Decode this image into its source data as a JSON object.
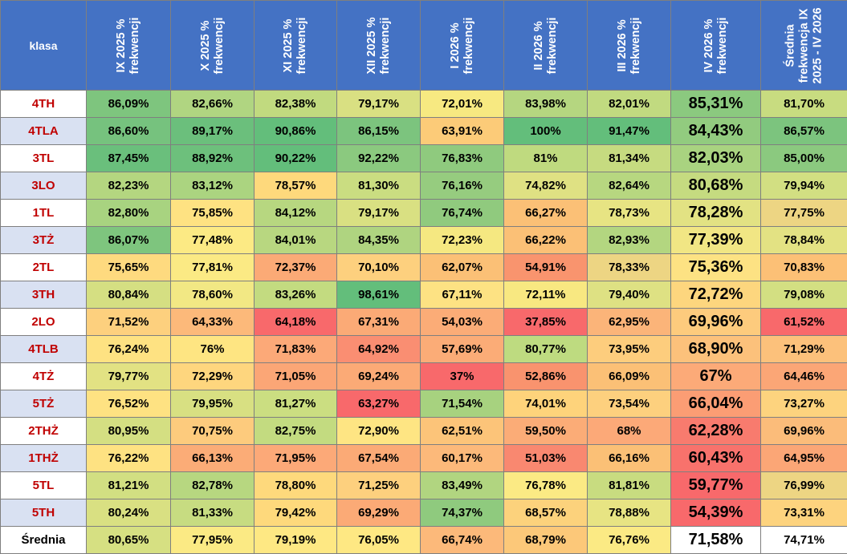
{
  "chart_data": {
    "type": "table",
    "columns": [
      "klasa",
      "IX 2025 % frekwencji",
      "X 2025 % frekwencji",
      "XI 2025 % frekwencji",
      "XII 2025 % frekwencji",
      "I 2026 % frekwencji",
      "II 2026 % frekwencji",
      "III 2026 % frekwencji",
      "IV 2026 % frekwencji",
      "Średnia frekwencja IX 2025 - IV 2026"
    ],
    "rows": [
      {
        "label": "4TH",
        "values": [
          "86,09%",
          "82,66%",
          "82,38%",
          "79,17%",
          "72,01%",
          "83,98%",
          "82,01%",
          "85,31%",
          "81,70%"
        ],
        "colors": [
          "#7ec57e",
          "#b0d581",
          "#c1da7f",
          "#d9e082",
          "#f7e981",
          "#b5d680",
          "#c1da80",
          "#8bc97f",
          "#c8dc80"
        ]
      },
      {
        "label": "4TLA",
        "values": [
          "86,60%",
          "89,17%",
          "90,86%",
          "86,15%",
          "63,91%",
          "100%",
          "91,47%",
          "84,43%",
          "86,57%"
        ],
        "colors": [
          "#76c27e",
          "#6bbf7c",
          "#63be7b",
          "#7cc47e",
          "#fccb78",
          "#63be7b",
          "#63be7b",
          "#92cb7f",
          "#7cc47e"
        ]
      },
      {
        "label": "3TL",
        "values": [
          "87,45%",
          "88,92%",
          "90,22%",
          "92,22%",
          "76,83%",
          "81%",
          "81,34%",
          "82,03%",
          "85,00%"
        ],
        "colors": [
          "#6abf7c",
          "#6dc07c",
          "#63be7b",
          "#8bc97f",
          "#8fca7e",
          "#bfda7f",
          "#c6db80",
          "#a9d380",
          "#8bc97f"
        ]
      },
      {
        "label": "3LO",
        "values": [
          "82,23%",
          "83,12%",
          "78,57%",
          "81,30%",
          "76,16%",
          "74,82%",
          "82,64%",
          "80,68%",
          "79,94%"
        ],
        "colors": [
          "#b4d680",
          "#abd480",
          "#fed97c",
          "#cadd81",
          "#96cc7f",
          "#dfe183",
          "#b7d780",
          "#c5db80",
          "#d2df82"
        ]
      },
      {
        "label": "1TL",
        "values": [
          "82,80%",
          "75,85%",
          "84,12%",
          "79,17%",
          "76,74%",
          "66,27%",
          "78,73%",
          "78,28%",
          "77,75%"
        ],
        "colors": [
          "#a8d380",
          "#fee282",
          "#b7d780",
          "#d9e082",
          "#90ca7e",
          "#fbc076",
          "#e7e483",
          "#e2e283",
          "#edd583"
        ]
      },
      {
        "label": "3TŻ",
        "values": [
          "86,07%",
          "77,48%",
          "84,01%",
          "84,35%",
          "72,23%",
          "66,22%",
          "82,93%",
          "77,39%",
          "78,84%"
        ],
        "colors": [
          "#7ec57e",
          "#fcea84",
          "#b8d780",
          "#afd480",
          "#f5e881",
          "#fbc076",
          "#b3d680",
          "#f1e684",
          "#e3e283"
        ]
      },
      {
        "label": "2TL",
        "values": [
          "75,65%",
          "77,81%",
          "72,37%",
          "70,10%",
          "62,07%",
          "54,91%",
          "78,33%",
          "75,36%",
          "70,83%"
        ],
        "colors": [
          "#feda7f",
          "#fbea84",
          "#fbaa76",
          "#fdd07e",
          "#fbc076",
          "#f9946e",
          "#edd583",
          "#fde283",
          "#fcc076"
        ]
      },
      {
        "label": "3TH",
        "values": [
          "80,84%",
          "78,60%",
          "83,26%",
          "98,61%",
          "67,11%",
          "72,11%",
          "79,40%",
          "72,72%",
          "79,08%"
        ],
        "colors": [
          "#d5df82",
          "#f2e884",
          "#c3db80",
          "#63be7b",
          "#fde283",
          "#f8e881",
          "#dee183",
          "#fdd67e",
          "#d3df82"
        ]
      },
      {
        "label": "2LO",
        "values": [
          "71,52%",
          "64,33%",
          "64,18%",
          "67,31%",
          "54,03%",
          "37,85%",
          "62,95%",
          "69,96%",
          "61,52%"
        ],
        "colors": [
          "#fdd07e",
          "#fcb97a",
          "#f8696b",
          "#fbaa76",
          "#fbac77",
          "#f8696b",
          "#fbb479",
          "#fdcb7d",
          "#f8696b"
        ]
      },
      {
        "label": "4TLB",
        "values": [
          "76,24%",
          "76%",
          "71,83%",
          "64,92%",
          "57,69%",
          "80,77%",
          "73,95%",
          "68,90%",
          "71,29%"
        ],
        "colors": [
          "#fee282",
          "#fee582",
          "#fca978",
          "#fa8e72",
          "#fbac77",
          "#bedb80",
          "#fdcd7d",
          "#fcc17b",
          "#fcc17b"
        ]
      },
      {
        "label": "4TŻ",
        "values": [
          "79,77%",
          "72,29%",
          "71,05%",
          "69,24%",
          "37%",
          "52,86%",
          "66,09%",
          "67%",
          "64,46%"
        ],
        "colors": [
          "#e2e283",
          "#fed67e",
          "#fba676",
          "#fbaa76",
          "#f8696b",
          "#f9936e",
          "#fbc076",
          "#fcaa78",
          "#fba676"
        ]
      },
      {
        "label": "5TŻ",
        "values": [
          "76,52%",
          "79,95%",
          "81,27%",
          "63,27%",
          "71,54%",
          "74,01%",
          "73,54%",
          "66,04%",
          "73,27%"
        ],
        "colors": [
          "#fee282",
          "#d8e082",
          "#cbde81",
          "#f8696b",
          "#a7d27f",
          "#fed37b",
          "#fdd07e",
          "#fb9d74",
          "#fdd37e"
        ]
      },
      {
        "label": "2THŻ",
        "values": [
          "80,95%",
          "70,75%",
          "82,75%",
          "72,90%",
          "62,51%",
          "59,50%",
          "68%",
          "62,28%",
          "69,96%"
        ],
        "colors": [
          "#d4df82",
          "#fdcb7d",
          "#c3db80",
          "#fee583",
          "#fcc479",
          "#fbac77",
          "#fca978",
          "#f87b6e",
          "#fbbc7a"
        ]
      },
      {
        "label": "1THŻ",
        "values": [
          "76,22%",
          "66,13%",
          "71,95%",
          "67,54%",
          "60,17%",
          "51,03%",
          "66,16%",
          "60,43%",
          "64,95%"
        ],
        "colors": [
          "#fee282",
          "#fbac77",
          "#fca978",
          "#fbaa76",
          "#fcb97a",
          "#f98870",
          "#fbc076",
          "#f8726c",
          "#fba676"
        ]
      },
      {
        "label": "5TL",
        "values": [
          "81,21%",
          "82,78%",
          "78,80%",
          "71,25%",
          "83,49%",
          "76,78%",
          "81,81%",
          "59,77%",
          "76,99%"
        ],
        "colors": [
          "#d2df82",
          "#b7d780",
          "#fed97c",
          "#fdd07e",
          "#b1d580",
          "#fbea84",
          "#c8dc80",
          "#f8696b",
          "#edd583"
        ]
      },
      {
        "label": "5TH",
        "values": [
          "80,24%",
          "81,33%",
          "79,42%",
          "69,29%",
          "74,37%",
          "68,57%",
          "78,88%",
          "54,39%",
          "73,31%"
        ],
        "colors": [
          "#d9e082",
          "#c7dc81",
          "#fed97c",
          "#fbaa76",
          "#8fca7e",
          "#fcd27c",
          "#e7e483",
          "#f8696b",
          "#fdd37e"
        ]
      },
      {
        "label": "Średnia",
        "values": [
          "80,65%",
          "77,95%",
          "79,19%",
          "76,05%",
          "66,74%",
          "68,79%",
          "76,76%",
          "71,58%",
          "74,71%"
        ],
        "colors": [
          "#d6e082",
          "#fbea84",
          "#fee883",
          "#fee883",
          "#fcb97a",
          "#fcc879",
          "#fbea84",
          "#ffffff",
          "#ffffff"
        ]
      }
    ]
  }
}
